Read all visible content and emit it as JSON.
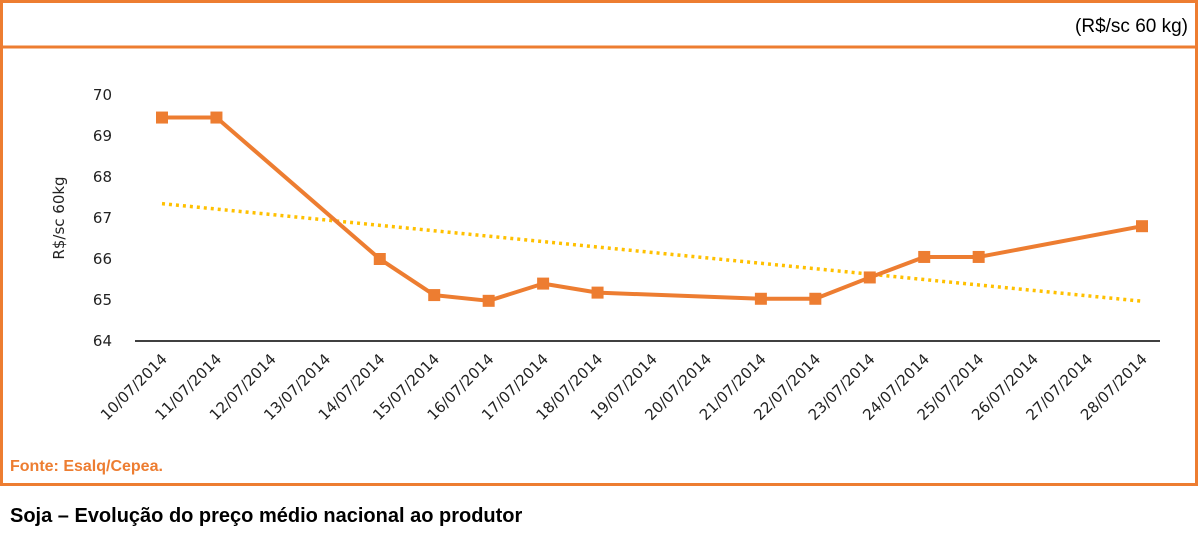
{
  "chart_data": {
    "type": "line",
    "unit_note": "(R$/sc 60 kg)",
    "y_label": "R$/sc 60kg",
    "source": "Fonte: Esalq/Cepea.",
    "title": "Soja – Evolução do preço médio nacional ao produtor",
    "categories": [
      "10/07/2014",
      "11/07/2014",
      "12/07/2014",
      "13/07/2014",
      "14/07/2014",
      "15/07/2014",
      "16/07/2014",
      "17/07/2014",
      "18/07/2014",
      "19/07/2014",
      "20/07/2014",
      "21/07/2014",
      "22/07/2014",
      "23/07/2014",
      "24/07/2014",
      "25/07/2014",
      "26/07/2014",
      "27/07/2014",
      "28/07/2014"
    ],
    "series": [
      {
        "color": "#ed7d31",
        "values": [
          69.45,
          69.45,
          null,
          null,
          66.0,
          65.12,
          64.98,
          65.4,
          65.18,
          null,
          null,
          65.03,
          65.03,
          65.55,
          66.05,
          66.05,
          null,
          null,
          66.8
        ]
      }
    ],
    "trendline": {
      "color": "#ffc000",
      "start": 67.35,
      "end": 64.97
    },
    "ylim": [
      64,
      70
    ],
    "yticks": [
      64,
      65,
      66,
      67,
      68,
      69,
      70
    ]
  }
}
